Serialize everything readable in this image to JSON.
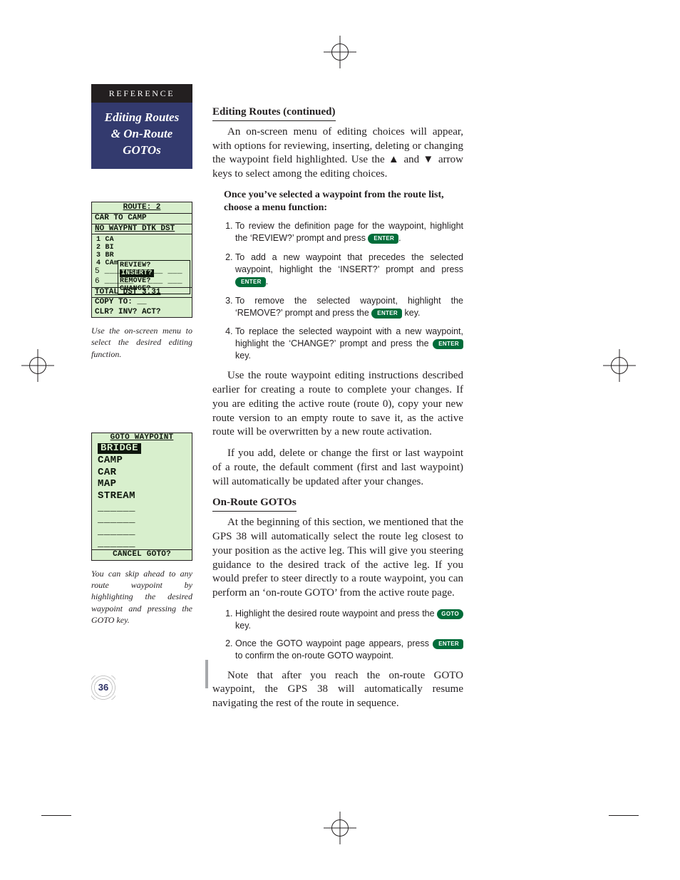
{
  "colors": {
    "ink": "#231f20",
    "navy": "#333a6e",
    "lcd_bg": "#d8efcd",
    "lcd_fg": "#0e160d",
    "key_green": "#006d3a",
    "gutter": "#a6a8ab"
  },
  "reference_label": "REFERENCE",
  "subject_title_lines": [
    "Editing Routes",
    "& On-Route",
    "GOTOs"
  ],
  "lcd1": {
    "title": "ROUTE:  2",
    "subtitle": "CAR TO CAMP",
    "col_header": "NO WAYPNT DTK DST",
    "rows_left": "1 CA\n2 BI\n3 BR\n4 CAm",
    "menu": [
      "REVIEW?",
      "INSERT?",
      "REMOVE?",
      "CHANGE?"
    ],
    "menu_selected_index": 1,
    "rows_bottom": [
      "5 ______   ___ ___",
      "6 ______   ___ ___"
    ],
    "total_line": "TOTAL DST     3.31",
    "footer1": "   COPY TO: __",
    "footer2": "CLR? INV? ACT?"
  },
  "caption1": "Use the on-screen menu to select the desired editing function.",
  "lcd2": {
    "header": "GOTO WAYPOINT",
    "items": [
      "BRIDGE",
      "CAMP",
      "CAR",
      "MAP",
      "STREAM",
      "______",
      "______",
      "______",
      "______"
    ],
    "selected_index": 0,
    "footer": "CANCEL GOTO?"
  },
  "caption2": "You can skip ahead to any route waypoint by highlighting the desired waypoint and pressing the GOTO key.",
  "page_number": "36",
  "main": {
    "h1": "Editing Routes (continued)",
    "p1": "An on-screen menu of editing choices will appear, with options for reviewing, inserting, deleting or changing the waypoint field highlighted. Use the  ▲  and  ▼  arrow keys to select among the editing choices.",
    "lead1": "Once you’ve selected a waypoint from the route list, choose a menu function:",
    "steps1": [
      "To review the definition page for the waypoint, highlight the ‘REVIEW?’ prompt and press {ENTER}.",
      "To add a new waypoint that precedes the selected waypoint, highlight the ‘INSERT?’ prompt and press {ENTER}.",
      "To remove the selected waypoint, highlight the ‘REMOVE?’ prompt and press the {ENTER} key.",
      "To replace the selected waypoint with a new waypoint, highlight the ‘CHANGE?’ prompt and press the {ENTER} key."
    ],
    "p2": "Use the route waypoint editing instructions described earlier for creating a route to complete your changes. If you are editing the active route (route 0), copy your new route version to an empty route to save it, as the active route will be overwritten by a new route activation.",
    "p3": "If you add, delete or change the first or last waypoint of a route, the default comment (first and last waypoint) will automatically be updated after your changes.",
    "h2": "On-Route GOTOs",
    "p4": "At the beginning of this section, we mentioned that the GPS 38 will automatically select the route leg closest to your position as the active leg. This will give you steering guidance to the desired track of the active leg. If you would prefer to steer directly to a route waypoint, you can perform an ‘on-route GOTO’ from the active route page.",
    "steps2": [
      "Highlight the desired route waypoint and press the {GOTO} key.",
      "Once the GOTO waypoint page appears, press {ENTER} to confirm the on-route GOTO waypoint."
    ],
    "p5": "Note that after you reach the on-route GOTO waypoint, the GPS 38 will automatically resume navigating the rest of the route in sequence."
  },
  "keycaps": {
    "enter": "ENTER",
    "goto": "GOTO"
  }
}
